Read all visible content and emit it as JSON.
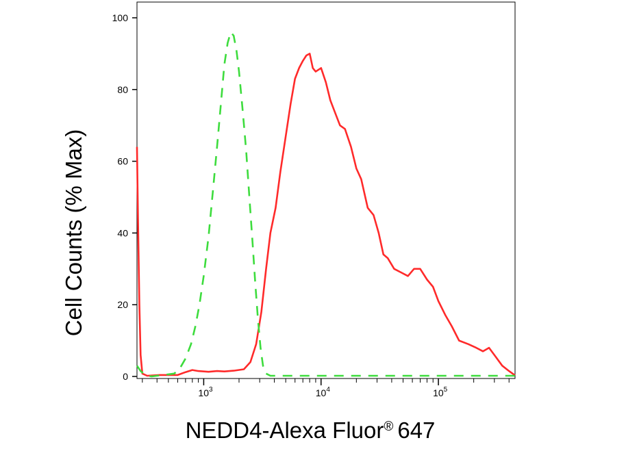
{
  "chart_data": {
    "type": "line",
    "xlabel": "NEDD4-Alexa Fluor",
    "xlabel_mark": "®",
    "xlabel_suffix": "647",
    "ylabel": "Cell Counts (% Max)",
    "x_scale": "log",
    "xlim": [
      270,
      450000
    ],
    "ylim": [
      0,
      100
    ],
    "yticks": [
      {
        "value": 0,
        "label": "0"
      },
      {
        "value": 20,
        "label": "20"
      },
      {
        "value": 40,
        "label": "40"
      },
      {
        "value": 60,
        "label": "60"
      },
      {
        "value": 80,
        "label": "80"
      },
      {
        "value": 100,
        "label": "100"
      }
    ],
    "xticks": [
      {
        "value": 1000,
        "base": "10",
        "exp": "3"
      },
      {
        "value": 10000,
        "base": "10",
        "exp": "4"
      },
      {
        "value": 100000,
        "base": "10",
        "exp": "5"
      }
    ],
    "grid": false,
    "legend": "none",
    "series": [
      {
        "color": "#ff2a2a",
        "style": "solid",
        "points": [
          [
            270,
            64
          ],
          [
            275,
            45
          ],
          [
            283,
            20
          ],
          [
            290,
            6
          ],
          [
            300,
            0.8
          ],
          [
            330,
            0.2
          ],
          [
            420,
            0.4
          ],
          [
            520,
            0.4
          ],
          [
            600,
            0.4
          ],
          [
            700,
            1.2
          ],
          [
            800,
            1.8
          ],
          [
            900,
            1.5
          ],
          [
            1100,
            1.3
          ],
          [
            1300,
            1.5
          ],
          [
            1500,
            1.4
          ],
          [
            1800,
            1.6
          ],
          [
            2200,
            2.0
          ],
          [
            2500,
            4.0
          ],
          [
            2800,
            9.0
          ],
          [
            3100,
            18
          ],
          [
            3400,
            30
          ],
          [
            3700,
            40
          ],
          [
            4100,
            47
          ],
          [
            4500,
            57
          ],
          [
            5000,
            67
          ],
          [
            5500,
            76
          ],
          [
            6000,
            83
          ],
          [
            6500,
            86
          ],
          [
            7000,
            88
          ],
          [
            7500,
            89.5
          ],
          [
            8000,
            90
          ],
          [
            8500,
            86
          ],
          [
            9000,
            85
          ],
          [
            10000,
            86
          ],
          [
            11000,
            82
          ],
          [
            12000,
            77
          ],
          [
            13000,
            74
          ],
          [
            14500,
            70
          ],
          [
            16000,
            69
          ],
          [
            18000,
            64
          ],
          [
            20000,
            58
          ],
          [
            22000,
            55
          ],
          [
            25000,
            47
          ],
          [
            28000,
            45
          ],
          [
            31000,
            40
          ],
          [
            34000,
            34
          ],
          [
            37000,
            33
          ],
          [
            42000,
            30
          ],
          [
            48000,
            29
          ],
          [
            55000,
            28
          ],
          [
            62000,
            30
          ],
          [
            70000,
            30
          ],
          [
            80000,
            27
          ],
          [
            90000,
            25
          ],
          [
            100000,
            21
          ],
          [
            115000,
            17
          ],
          [
            130000,
            14
          ],
          [
            150000,
            10
          ],
          [
            180000,
            9
          ],
          [
            210000,
            8
          ],
          [
            240000,
            7
          ],
          [
            270000,
            8
          ],
          [
            300000,
            6
          ],
          [
            350000,
            3
          ],
          [
            400000,
            1.5
          ],
          [
            450000,
            0.3
          ]
        ]
      },
      {
        "color": "#3ddc3d",
        "style": "dashed",
        "points": [
          [
            270,
            3
          ],
          [
            290,
            1.5
          ],
          [
            320,
            0.3
          ],
          [
            360,
            0
          ],
          [
            500,
            0.6
          ],
          [
            560,
            0.8
          ],
          [
            620,
            2
          ],
          [
            700,
            5
          ],
          [
            780,
            9
          ],
          [
            850,
            14
          ],
          [
            920,
            20
          ],
          [
            1000,
            28
          ],
          [
            1100,
            39
          ],
          [
            1200,
            52
          ],
          [
            1300,
            64
          ],
          [
            1400,
            76
          ],
          [
            1500,
            87
          ],
          [
            1600,
            93
          ],
          [
            1700,
            96
          ],
          [
            1800,
            95
          ],
          [
            1900,
            91
          ],
          [
            2000,
            85
          ],
          [
            2150,
            74
          ],
          [
            2300,
            63
          ],
          [
            2450,
            50
          ],
          [
            2600,
            38
          ],
          [
            2750,
            26
          ],
          [
            2900,
            16
          ],
          [
            3050,
            8
          ],
          [
            3200,
            3
          ],
          [
            3400,
            0.8
          ],
          [
            3700,
            0.2
          ],
          [
            5000,
            0.2
          ],
          [
            20000,
            0.2
          ],
          [
            100000,
            0.2
          ],
          [
            450000,
            0.2
          ]
        ]
      }
    ]
  }
}
